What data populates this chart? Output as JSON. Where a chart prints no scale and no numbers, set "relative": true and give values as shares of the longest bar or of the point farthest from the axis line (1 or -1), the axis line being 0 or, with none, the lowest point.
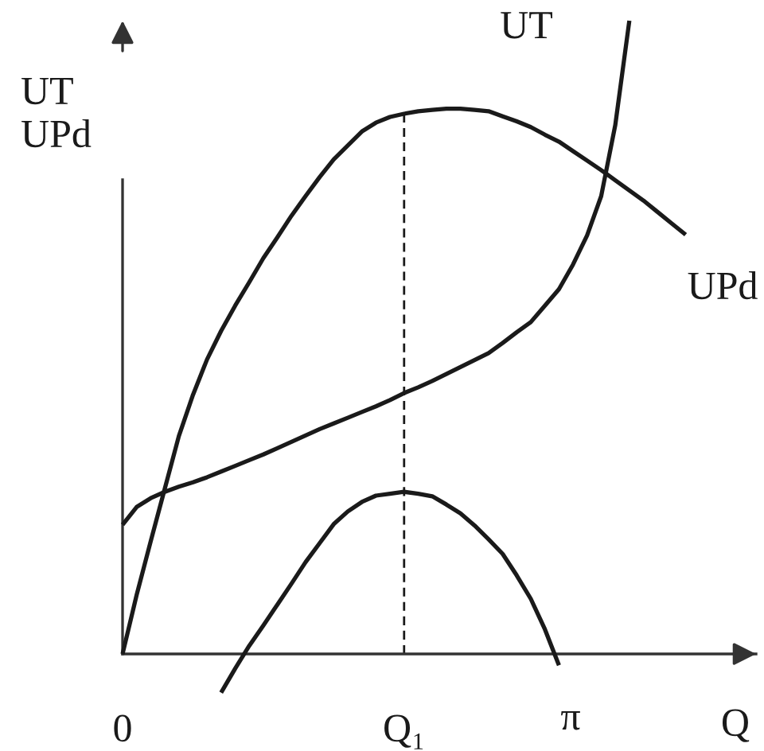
{
  "chart_data": {
    "type": "line",
    "relative": true,
    "xlabel": "Q",
    "ylabel": "UT\nUPd",
    "categories": [
      "0",
      null,
      null,
      null,
      null,
      null,
      null,
      null,
      null,
      null,
      null,
      null,
      null,
      null,
      null,
      null,
      null,
      null,
      null,
      null,
      "Q₁",
      null,
      null,
      null,
      null,
      null,
      null,
      null,
      null,
      null,
      null,
      null,
      null,
      null,
      null,
      null,
      null,
      null,
      null,
      null,
      null,
      null,
      null,
      null,
      null,
      null
    ],
    "series": [
      {
        "name": "UT",
        "color": "#1a1a1a",
        "values": [
          0.204,
          0.232,
          0.246,
          0.256,
          0.264,
          0.271,
          0.279,
          0.288,
          0.297,
          0.306,
          0.315,
          0.325,
          0.335,
          0.345,
          0.355,
          0.364,
          0.373,
          0.382,
          0.391,
          0.401,
          0.412,
          0.421,
          0.431,
          0.442,
          0.453,
          0.464,
          0.475,
          0.491,
          0.508,
          0.524,
          0.55,
          0.576,
          0.615,
          0.661,
          0.723,
          0.835,
          1.0,
          null,
          null,
          null,
          null,
          null,
          null,
          null,
          null,
          null
        ]
      },
      {
        "name": "UPd",
        "color": "#1a1a1a",
        "values": [
          0,
          0.093,
          0.178,
          0.261,
          0.344,
          0.409,
          0.465,
          0.51,
          0.55,
          0.587,
          0.625,
          0.658,
          0.692,
          0.723,
          0.753,
          0.781,
          0.803,
          0.825,
          0.839,
          0.848,
          0.853,
          0.857,
          0.859,
          0.861,
          0.861,
          0.859,
          0.857,
          0.849,
          0.841,
          0.832,
          0.82,
          0.809,
          0.794,
          0.779,
          0.764,
          0.748,
          0.732,
          0.716,
          0.698,
          0.68,
          0.662,
          null,
          null,
          null,
          null,
          null
        ]
      },
      {
        "name": "π",
        "color": "#1a1a1a",
        "values": [
          null,
          null,
          null,
          null,
          null,
          null,
          null,
          -0.061,
          -0.023,
          0.013,
          0.045,
          0.078,
          0.111,
          0.145,
          0.175,
          0.205,
          0.225,
          0.24,
          0.25,
          0.253,
          0.256,
          0.253,
          0.249,
          0.236,
          0.222,
          0.203,
          0.181,
          0.158,
          0.124,
          0.087,
          0.039,
          -0.018,
          null,
          null,
          null,
          null,
          null,
          null,
          null,
          null,
          null,
          null,
          null,
          null,
          null,
          null
        ]
      }
    ],
    "ref_lines": [
      {
        "axis": "x",
        "value": "Q₁",
        "color": "#1a1a1a",
        "line_style": "dashed"
      }
    ]
  }
}
